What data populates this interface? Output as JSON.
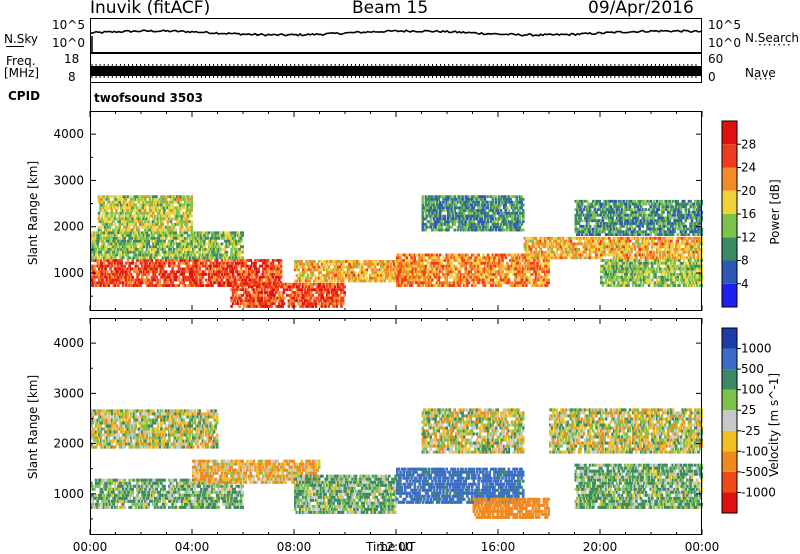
{
  "header": {
    "station": "Inuvik (fitACF)",
    "beam": "Beam 15",
    "date": "09/Apr/2016"
  },
  "top_panels": {
    "nsky_label": "N.Sky",
    "nsky_ticks": [
      "10^5",
      "10^0"
    ],
    "nsearch_label": "N.Search",
    "nsearch_ticks": [
      "10^5",
      "10^0"
    ],
    "freq_label": "Freq.",
    "freq_unit": "[MHz]",
    "freq_ticks": [
      "18",
      "8"
    ],
    "nave_label": "Nave",
    "nave_ticks": [
      "60",
      "0"
    ],
    "cpid_label": "CPID",
    "cpid_value": "twofsound 3503"
  },
  "x_axis": {
    "label": "Time UT",
    "ticks": [
      "00:00",
      "04:00",
      "08:00",
      "12:00",
      "16:00",
      "20:00",
      "00:00"
    ]
  },
  "chart_data": [
    {
      "type": "heatmap",
      "title": "",
      "xlabel": "",
      "ylabel": "Slant Range [km]",
      "x_range_hours": [
        0,
        24
      ],
      "ylim": [
        180,
        4500
      ],
      "yticks": [
        1000,
        2000,
        3000,
        4000
      ],
      "colorbar": {
        "label": "Power [dB]",
        "ticks": [
          "4",
          "8",
          "12",
          "16",
          "20",
          "24",
          "28"
        ],
        "colors": [
          "#1f1ff0",
          "#2e58b4",
          "#3a8a63",
          "#7dc24a",
          "#f0d23a",
          "#f58a28",
          "#f03c1c",
          "#e01010"
        ]
      },
      "regions": [
        {
          "t0": 0,
          "t1": 7.5,
          "r0": 700,
          "r1": 1300,
          "value": 26
        },
        {
          "t0": 0,
          "t1": 6,
          "r0": 1300,
          "r1": 1900,
          "value": 14
        },
        {
          "t0": 0.3,
          "t1": 4,
          "r0": 1900,
          "r1": 2700,
          "value": 16
        },
        {
          "t0": 5.5,
          "t1": 10,
          "r0": 250,
          "r1": 800,
          "value": 26
        },
        {
          "t0": 8,
          "t1": 13,
          "r0": 800,
          "r1": 1300,
          "value": 20
        },
        {
          "t0": 12,
          "t1": 18,
          "r0": 700,
          "r1": 1400,
          "value": 22
        },
        {
          "t0": 13,
          "t1": 17,
          "r0": 1900,
          "r1": 2700,
          "value": 10
        },
        {
          "t0": 17,
          "t1": 24,
          "r0": 1300,
          "r1": 1800,
          "value": 20
        },
        {
          "t0": 19,
          "t1": 24,
          "r0": 1800,
          "r1": 2600,
          "value": 10
        },
        {
          "t0": 20,
          "t1": 24,
          "r0": 700,
          "r1": 1300,
          "value": 14
        }
      ]
    },
    {
      "type": "heatmap",
      "title": "",
      "xlabel": "Time UT",
      "ylabel": "Slant Range [km]",
      "x_range_hours": [
        0,
        24
      ],
      "ylim": [
        180,
        4500
      ],
      "yticks": [
        1000,
        2000,
        3000,
        4000
      ],
      "colorbar": {
        "label": "Velocity [m s^-1]",
        "ticks": [
          "1000",
          "500",
          "100",
          "25",
          "-25",
          "-100",
          "-500",
          "-1000"
        ],
        "colors": [
          "#1e3ca8",
          "#3a6cc8",
          "#3a8a63",
          "#7dc24a",
          "#c8c8c8",
          "#f0c020",
          "#f08a20",
          "#f04818",
          "#e01010"
        ]
      },
      "regions": [
        {
          "t0": 0,
          "t1": 6,
          "r0": 700,
          "r1": 1300,
          "value": 100
        },
        {
          "t0": 0,
          "t1": 5,
          "r0": 1900,
          "r1": 2700,
          "value": 0
        },
        {
          "t0": 4,
          "t1": 9,
          "r0": 1200,
          "r1": 1700,
          "value": -100
        },
        {
          "t0": 8,
          "t1": 12,
          "r0": 600,
          "r1": 1400,
          "value": 100
        },
        {
          "t0": 12,
          "t1": 17,
          "r0": 800,
          "r1": 1500,
          "value": 600
        },
        {
          "t0": 13,
          "t1": 17,
          "r0": 1800,
          "r1": 2700,
          "value": 0
        },
        {
          "t0": 15,
          "t1": 18,
          "r0": 500,
          "r1": 900,
          "value": -300
        },
        {
          "t0": 18,
          "t1": 24,
          "r0": 1800,
          "r1": 2700,
          "value": 0
        },
        {
          "t0": 19,
          "t1": 24,
          "r0": 700,
          "r1": 1600,
          "value": 100
        }
      ]
    }
  ]
}
